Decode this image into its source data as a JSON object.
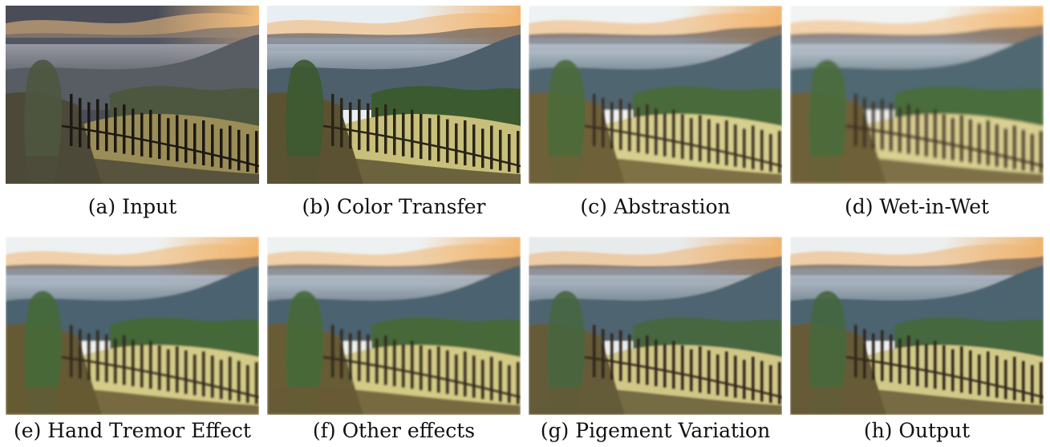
{
  "figure": {
    "panels": [
      {
        "caption": "(a) Input",
        "style": "input"
      },
      {
        "caption": "(b) Color Transfer",
        "style": "color"
      },
      {
        "caption": "(c) Abstrastion",
        "style": "abstract"
      },
      {
        "caption": "(d) Wet-in-Wet",
        "style": "wet"
      },
      {
        "caption": "(e) Hand Tremor Effect",
        "style": "tremor"
      },
      {
        "caption": "(f) Other effects",
        "style": "other"
      },
      {
        "caption": "(g) Pigement Variation",
        "style": "pigment"
      },
      {
        "caption": "(h) Output",
        "style": "output"
      }
    ]
  }
}
